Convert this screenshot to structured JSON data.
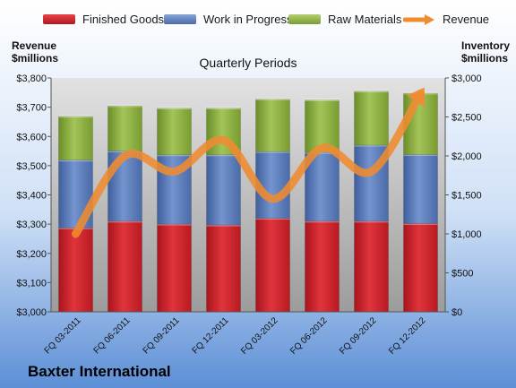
{
  "chart_data": {
    "type": "bar",
    "title": "Quarterly Periods",
    "company": "Baxter International",
    "categories": [
      "FQ 03-2011",
      "FQ 06-2011",
      "FQ 09-2011",
      "FQ 12-2011",
      "FQ 03-2012",
      "FQ 06-2012",
      "FQ 09-2012",
      "FQ 12-2012"
    ],
    "y_left": {
      "label_line1": "Revenue",
      "label_line2": "$millions",
      "range": [
        3000,
        3800
      ],
      "ticks": [
        "$3,000",
        "$3,100",
        "$3,200",
        "$3,300",
        "$3,400",
        "$3,500",
        "$3,600",
        "$3,700",
        "$3,800"
      ]
    },
    "y_right": {
      "label_line1": "Inventory",
      "label_line2": "$millions",
      "range": [
        0,
        3000
      ],
      "ticks": [
        "$0",
        "$500",
        "$1,000",
        "$1,500",
        "$2,000",
        "$2,500",
        "$3,000"
      ]
    },
    "series": [
      {
        "name": "Finished Goods",
        "axis": "left",
        "stack": true,
        "color": "#d7232d",
        "values": [
          3287,
          3310,
          3300,
          3297,
          3320,
          3310,
          3310,
          3302
        ]
      },
      {
        "name": "Work in Progress",
        "axis": "left",
        "stack": true,
        "color": "#5b7fc0",
        "values": [
          232,
          240,
          237,
          240,
          228,
          235,
          260,
          236
        ]
      },
      {
        "name": "Raw Materials",
        "axis": "left",
        "stack": true,
        "color": "#8db33e",
        "values": [
          150,
          155,
          160,
          160,
          180,
          180,
          185,
          210
        ]
      },
      {
        "name": "Revenue",
        "axis": "right",
        "type": "line",
        "color": "#f08b30",
        "values": [
          1000,
          2000,
          1800,
          2200,
          1450,
          2100,
          1800,
          2800
        ]
      }
    ],
    "legend_placement": "top",
    "grid": false
  }
}
